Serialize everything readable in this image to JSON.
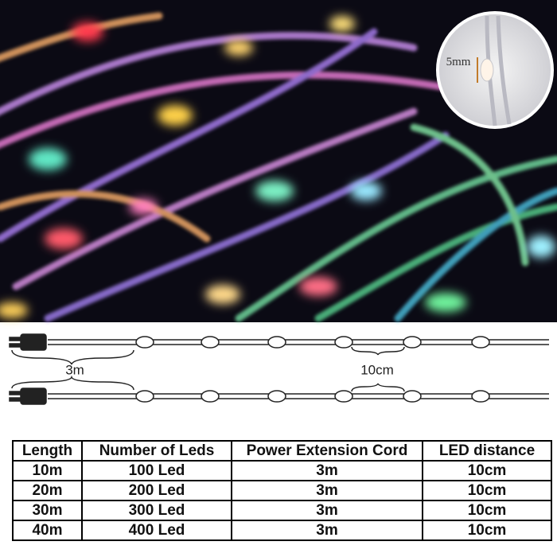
{
  "inset": {
    "label": "5mm"
  },
  "diagram": {
    "cord_label": "3m",
    "spacing_label": "10cm"
  },
  "table": {
    "header": [
      "Length",
      "Number of Leds",
      "Power Extension Cord",
      "LED distance"
    ],
    "rows": [
      [
        "10m",
        "100 Led",
        "3m",
        "10cm"
      ],
      [
        "20m",
        "200 Led",
        "3m",
        "10cm"
      ],
      [
        "30m",
        "300 Led",
        "3m",
        "10cm"
      ],
      [
        "40m",
        "400 Led",
        "3m",
        "10cm"
      ]
    ]
  }
}
